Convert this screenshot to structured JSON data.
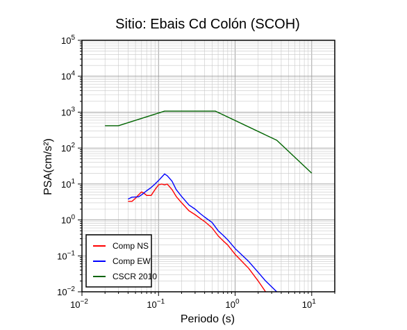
{
  "chart_data": {
    "type": "line",
    "title": "Sitio: Ebais Cd Colón (SCOH)",
    "xlabel": "Periodo (s)",
    "ylabel": "PSA(cm/s²)",
    "x_scale": "log",
    "y_scale": "log",
    "xlim": [
      0.01,
      20
    ],
    "ylim": [
      0.01,
      100000
    ],
    "grid": true,
    "legend_position": "bottom-left",
    "x_ticks": [
      {
        "base": "10",
        "exp": "−2"
      },
      {
        "base": "10",
        "exp": "−1"
      },
      {
        "base": "10",
        "exp": "0"
      },
      {
        "base": "10",
        "exp": "1"
      }
    ],
    "y_ticks": [
      {
        "base": "10",
        "exp": "−2"
      },
      {
        "base": "10",
        "exp": "−1"
      },
      {
        "base": "10",
        "exp": "0"
      },
      {
        "base": "10",
        "exp": "1"
      },
      {
        "base": "10",
        "exp": "2"
      },
      {
        "base": "10",
        "exp": "3"
      },
      {
        "base": "10",
        "exp": "4"
      },
      {
        "base": "10",
        "exp": "5"
      }
    ],
    "series": [
      {
        "name": "Comp NS",
        "color": "#ff0000",
        "points": [
          [
            0.04,
            3.3
          ],
          [
            0.045,
            3.3
          ],
          [
            0.05,
            4.0
          ],
          [
            0.055,
            5.0
          ],
          [
            0.06,
            6.0
          ],
          [
            0.065,
            5.5
          ],
          [
            0.07,
            4.8
          ],
          [
            0.08,
            4.8
          ],
          [
            0.09,
            7.0
          ],
          [
            0.1,
            9.5
          ],
          [
            0.11,
            10.0
          ],
          [
            0.12,
            9.5
          ],
          [
            0.13,
            10.0
          ],
          [
            0.15,
            7.0
          ],
          [
            0.17,
            4.5
          ],
          [
            0.2,
            3.0
          ],
          [
            0.25,
            1.8
          ],
          [
            0.3,
            1.4
          ],
          [
            0.35,
            1.1
          ],
          [
            0.4,
            0.9
          ],
          [
            0.5,
            0.6
          ],
          [
            0.6,
            0.36
          ],
          [
            0.7,
            0.26
          ],
          [
            0.8,
            0.2
          ],
          [
            1.0,
            0.11
          ],
          [
            1.5,
            0.045
          ],
          [
            2.0,
            0.02
          ],
          [
            2.5,
            0.01
          ]
        ]
      },
      {
        "name": "Comp EW",
        "color": "#0000ff",
        "points": [
          [
            0.04,
            3.8
          ],
          [
            0.045,
            4.3
          ],
          [
            0.055,
            4.4
          ],
          [
            0.06,
            5.0
          ],
          [
            0.07,
            6.5
          ],
          [
            0.08,
            8.0
          ],
          [
            0.09,
            10.0
          ],
          [
            0.1,
            12.5
          ],
          [
            0.11,
            15.5
          ],
          [
            0.12,
            19.0
          ],
          [
            0.13,
            17.0
          ],
          [
            0.15,
            12.0
          ],
          [
            0.17,
            7.0
          ],
          [
            0.2,
            4.5
          ],
          [
            0.25,
            2.6
          ],
          [
            0.3,
            2.0
          ],
          [
            0.35,
            1.5
          ],
          [
            0.4,
            1.2
          ],
          [
            0.5,
            0.85
          ],
          [
            0.6,
            0.5
          ],
          [
            0.7,
            0.37
          ],
          [
            0.8,
            0.28
          ],
          [
            1.0,
            0.16
          ],
          [
            1.5,
            0.07
          ],
          [
            2.0,
            0.035
          ],
          [
            2.5,
            0.02
          ],
          [
            3.5,
            0.01
          ]
        ]
      },
      {
        "name": "CSCR 2010",
        "color": "#006400",
        "points": [
          [
            0.02,
            420
          ],
          [
            0.03,
            420
          ],
          [
            0.12,
            1070
          ],
          [
            0.55,
            1070
          ],
          [
            3.5,
            165
          ],
          [
            10.0,
            20
          ]
        ]
      }
    ]
  }
}
